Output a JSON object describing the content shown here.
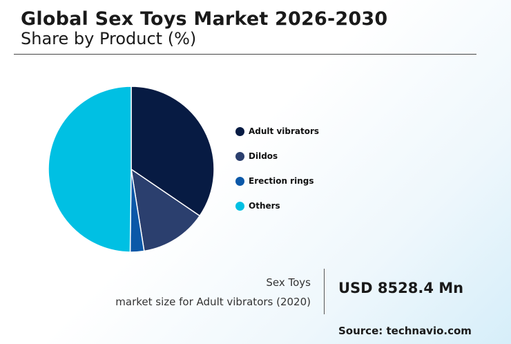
{
  "header": {
    "title": "Global Sex Toys Market 2026-2030",
    "subtitle": "Share by Product (%)"
  },
  "chart_data": {
    "type": "pie",
    "categories": [
      "Adult vibrators",
      "Dildos",
      "Erection rings",
      "Others"
    ],
    "values": [
      34.5,
      13,
      2.7,
      49.8
    ],
    "colors": [
      "#071b43",
      "#2b3f6e",
      "#0b58a8",
      "#00c0e3"
    ],
    "legend_position": "right"
  },
  "kpi": {
    "line1": "Sex Toys",
    "line2": "market size for Adult vibrators (2020)",
    "value": "USD 8528.4 Mn"
  },
  "source": "Source: technavio.com"
}
